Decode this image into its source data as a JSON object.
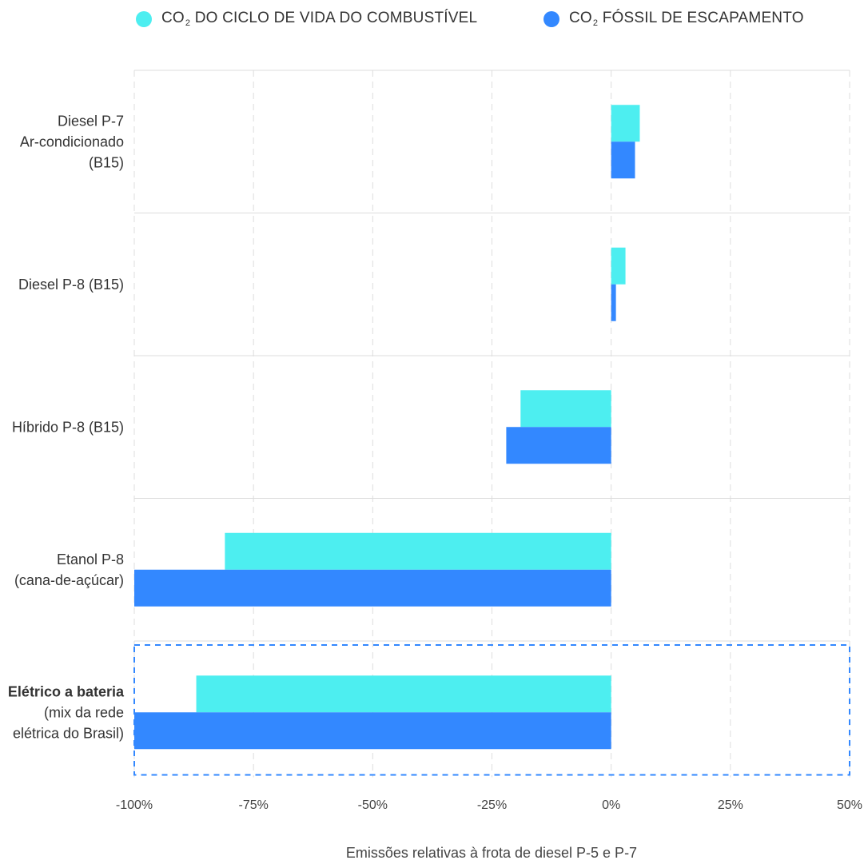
{
  "legend": [
    {
      "prefix": "CO",
      "sub": "2",
      "suffix": " DO CICLO DE VIDA DO COMBUSTÍVEL",
      "color": "#4deef0"
    },
    {
      "prefix": "CO",
      "sub": "2",
      "suffix": " FÓSSIL DE ESCAPAMENTO",
      "color": "#3388ff"
    }
  ],
  "chart_data": {
    "type": "bar",
    "orientation": "horizontal",
    "categories": [
      [
        "Diesel P-7",
        "Ar-condicionado",
        "(B15)"
      ],
      [
        "Diesel P-8 (B15)"
      ],
      [
        "Híbrido P-8 (B15)"
      ],
      [
        "Etanol P-8",
        "(cana-de-açúcar)"
      ],
      [
        "Elétrico a bateria",
        "(mix da rede",
        "elétrica do Brasil)"
      ]
    ],
    "series": [
      {
        "name": "CO2 DO CICLO DE VIDA DO COMBUSTÍVEL",
        "color": "#4deef0",
        "values": [
          6,
          3,
          -19,
          -81,
          -87
        ]
      },
      {
        "name": "CO2 FÓSSIL DE ESCAPAMENTO",
        "color": "#3388ff",
        "values": [
          5,
          1,
          -22,
          -100,
          -100
        ]
      }
    ],
    "xlim": [
      -100,
      50
    ],
    "xticks": [
      -100,
      -75,
      -50,
      -25,
      0,
      25,
      50
    ],
    "xtick_labels": [
      "-100%",
      "-75%",
      "-50%",
      "-25%",
      "0%",
      "25%",
      "50%"
    ],
    "xlabel": "Emissões relativas à frota de diesel P-5 e P-7",
    "highlighted_category": 4,
    "grid": true
  }
}
